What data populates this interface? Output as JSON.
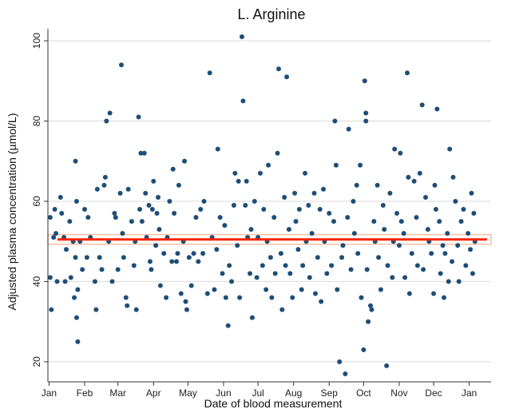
{
  "chart_data": {
    "type": "scatter",
    "title": "L. Arginine",
    "xlabel": "Date of blood measurement",
    "ylabel": "Adjusted plasma concentration (µmol/L)",
    "x_axis": {
      "type": "date",
      "range": [
        "2011-12-31",
        "2013-01-20"
      ],
      "ticks": [
        {
          "date": "2012-01-01",
          "label": "Jan"
        },
        {
          "date": "2012-02-01",
          "label": "Feb"
        },
        {
          "date": "2012-03-01",
          "label": "Mar"
        },
        {
          "date": "2012-04-01",
          "label": "Apr"
        },
        {
          "date": "2012-05-01",
          "label": "May"
        },
        {
          "date": "2012-06-01",
          "label": "Jun"
        },
        {
          "date": "2012-07-01",
          "label": "Jul"
        },
        {
          "date": "2012-08-01",
          "label": "Aug"
        },
        {
          "date": "2012-09-01",
          "label": "Sep"
        },
        {
          "date": "2012-10-01",
          "label": "Oct"
        },
        {
          "date": "2012-11-01",
          "label": "Nov"
        },
        {
          "date": "2012-12-01",
          "label": "Dec"
        },
        {
          "date": "2013-01-01",
          "label": "Jan"
        }
      ]
    },
    "y_axis": {
      "range": [
        15,
        103
      ],
      "ticks": [
        20,
        40,
        60,
        80,
        100
      ]
    },
    "grid": true,
    "colors": {
      "points": "#1d4e77",
      "fit_line": "#ff2200",
      "ci_band": "#f4bfa6",
      "axis": "#333333",
      "grid": "#d9d9d9"
    },
    "fit": {
      "y": 50.5,
      "ci": [
        49.3,
        51.7
      ]
    },
    "points": [
      [
        "2012-01-02",
        56
      ],
      [
        "2012-01-02",
        41
      ],
      [
        "2012-01-03",
        33
      ],
      [
        "2012-01-05",
        51
      ],
      [
        "2012-01-06",
        58
      ],
      [
        "2012-01-07",
        52
      ],
      [
        "2012-01-08",
        40
      ],
      [
        "2012-01-11",
        61
      ],
      [
        "2012-01-12",
        57
      ],
      [
        "2012-01-14",
        51
      ],
      [
        "2012-01-15",
        40
      ],
      [
        "2012-01-16",
        48
      ],
      [
        "2012-01-19",
        55
      ],
      [
        "2012-01-20",
        41
      ],
      [
        "2012-01-22",
        50
      ],
      [
        "2012-01-23",
        36
      ],
      [
        "2012-01-24",
        46
      ],
      [
        "2012-01-24",
        70
      ],
      [
        "2012-01-25",
        60
      ],
      [
        "2012-01-25",
        31
      ],
      [
        "2012-01-26",
        25
      ],
      [
        "2012-01-26",
        38
      ],
      [
        "2012-01-28",
        50
      ],
      [
        "2012-01-30",
        43
      ],
      [
        "2012-02-01",
        58
      ],
      [
        "2012-02-03",
        46
      ],
      [
        "2012-02-04",
        56
      ],
      [
        "2012-02-06",
        51
      ],
      [
        "2012-02-10",
        40
      ],
      [
        "2012-02-11",
        33
      ],
      [
        "2012-02-12",
        63
      ],
      [
        "2012-02-14",
        46
      ],
      [
        "2012-02-16",
        43
      ],
      [
        "2012-02-18",
        64
      ],
      [
        "2012-02-19",
        66
      ],
      [
        "2012-02-20",
        80
      ],
      [
        "2012-02-22",
        50
      ],
      [
        "2012-02-23",
        82
      ],
      [
        "2012-02-25",
        40
      ],
      [
        "2012-02-27",
        57
      ],
      [
        "2012-02-28",
        56
      ],
      [
        "2012-03-01",
        43
      ],
      [
        "2012-03-03",
        62
      ],
      [
        "2012-03-04",
        94
      ],
      [
        "2012-03-05",
        52
      ],
      [
        "2012-03-06",
        46
      ],
      [
        "2012-03-08",
        36
      ],
      [
        "2012-03-09",
        34
      ],
      [
        "2012-03-10",
        63
      ],
      [
        "2012-03-13",
        55
      ],
      [
        "2012-03-15",
        44
      ],
      [
        "2012-03-16",
        50
      ],
      [
        "2012-03-17",
        33
      ],
      [
        "2012-03-19",
        81
      ],
      [
        "2012-03-20",
        58
      ],
      [
        "2012-03-21",
        72
      ],
      [
        "2012-03-22",
        55
      ],
      [
        "2012-03-24",
        72
      ],
      [
        "2012-03-25",
        62
      ],
      [
        "2012-03-26",
        51
      ],
      [
        "2012-03-28",
        59
      ],
      [
        "2012-03-29",
        45
      ],
      [
        "2012-03-30",
        43
      ],
      [
        "2012-03-31",
        58
      ],
      [
        "2012-04-01",
        65
      ],
      [
        "2012-04-03",
        49
      ],
      [
        "2012-04-04",
        57
      ],
      [
        "2012-04-05",
        61
      ],
      [
        "2012-04-06",
        53
      ],
      [
        "2012-04-07",
        39
      ],
      [
        "2012-04-10",
        47
      ],
      [
        "2012-04-12",
        36
      ],
      [
        "2012-04-13",
        51
      ],
      [
        "2012-04-15",
        60
      ],
      [
        "2012-04-17",
        45
      ],
      [
        "2012-04-18",
        68
      ],
      [
        "2012-04-19",
        57
      ],
      [
        "2012-04-21",
        45
      ],
      [
        "2012-04-22",
        47
      ],
      [
        "2012-04-23",
        64
      ],
      [
        "2012-04-25",
        37
      ],
      [
        "2012-04-27",
        50
      ],
      [
        "2012-04-28",
        70
      ],
      [
        "2012-04-29",
        35
      ],
      [
        "2012-04-30",
        33
      ],
      [
        "2012-05-02",
        46
      ],
      [
        "2012-05-04",
        39
      ],
      [
        "2012-05-06",
        47
      ],
      [
        "2012-05-08",
        56
      ],
      [
        "2012-05-10",
        45
      ],
      [
        "2012-05-12",
        58
      ],
      [
        "2012-05-14",
        47
      ],
      [
        "2012-05-15",
        60
      ],
      [
        "2012-05-18",
        37
      ],
      [
        "2012-05-20",
        92
      ],
      [
        "2012-05-22",
        51
      ],
      [
        "2012-05-24",
        38
      ],
      [
        "2012-05-26",
        48
      ],
      [
        "2012-05-27",
        73
      ],
      [
        "2012-05-29",
        56
      ],
      [
        "2012-05-31",
        42
      ],
      [
        "2012-06-02",
        54
      ],
      [
        "2012-06-03",
        36
      ],
      [
        "2012-06-05",
        29
      ],
      [
        "2012-06-06",
        44
      ],
      [
        "2012-06-08",
        40
      ],
      [
        "2012-06-10",
        59
      ],
      [
        "2012-06-11",
        67
      ],
      [
        "2012-06-13",
        49
      ],
      [
        "2012-06-14",
        65
      ],
      [
        "2012-06-15",
        36
      ],
      [
        "2012-06-17",
        101
      ],
      [
        "2012-06-18",
        85
      ],
      [
        "2012-06-20",
        59
      ],
      [
        "2012-06-21",
        65
      ],
      [
        "2012-06-22",
        51
      ],
      [
        "2012-06-24",
        42
      ],
      [
        "2012-06-25",
        53
      ],
      [
        "2012-06-26",
        31
      ],
      [
        "2012-06-28",
        60
      ],
      [
        "2012-06-30",
        41
      ],
      [
        "2012-07-01",
        51
      ],
      [
        "2012-07-03",
        67
      ],
      [
        "2012-07-05",
        44
      ],
      [
        "2012-07-06",
        58
      ],
      [
        "2012-07-08",
        38
      ],
      [
        "2012-07-09",
        50
      ],
      [
        "2012-07-10",
        69
      ],
      [
        "2012-07-12",
        46
      ],
      [
        "2012-07-13",
        36
      ],
      [
        "2012-07-15",
        56
      ],
      [
        "2012-07-16",
        42
      ],
      [
        "2012-07-18",
        72
      ],
      [
        "2012-07-19",
        93
      ],
      [
        "2012-07-21",
        47
      ],
      [
        "2012-07-22",
        33
      ],
      [
        "2012-07-24",
        61
      ],
      [
        "2012-07-25",
        44
      ],
      [
        "2012-07-26",
        91
      ],
      [
        "2012-07-28",
        53
      ],
      [
        "2012-07-29",
        42
      ],
      [
        "2012-07-31",
        36
      ],
      [
        "2012-08-02",
        62
      ],
      [
        "2012-08-03",
        55
      ],
      [
        "2012-08-05",
        48
      ],
      [
        "2012-08-06",
        58
      ],
      [
        "2012-08-08",
        38
      ],
      [
        "2012-08-09",
        44
      ],
      [
        "2012-08-11",
        67
      ],
      [
        "2012-08-12",
        50
      ],
      [
        "2012-08-14",
        59
      ],
      [
        "2012-08-15",
        41
      ],
      [
        "2012-08-17",
        52
      ],
      [
        "2012-08-19",
        62
      ],
      [
        "2012-08-20",
        37
      ],
      [
        "2012-08-22",
        46
      ],
      [
        "2012-08-24",
        58
      ],
      [
        "2012-08-25",
        35
      ],
      [
        "2012-08-27",
        63
      ],
      [
        "2012-08-28",
        50
      ],
      [
        "2012-08-30",
        42
      ],
      [
        "2012-09-01",
        57
      ],
      [
        "2012-09-03",
        44
      ],
      [
        "2012-09-05",
        55
      ],
      [
        "2012-09-06",
        80
      ],
      [
        "2012-09-07",
        69
      ],
      [
        "2012-09-08",
        38
      ],
      [
        "2012-09-10",
        20
      ],
      [
        "2012-09-12",
        46
      ],
      [
        "2012-09-13",
        49
      ],
      [
        "2012-09-15",
        17
      ],
      [
        "2012-09-17",
        56
      ],
      [
        "2012-09-18",
        78
      ],
      [
        "2012-09-20",
        43
      ],
      [
        "2012-09-22",
        60
      ],
      [
        "2012-09-23",
        52
      ],
      [
        "2012-09-25",
        64
      ],
      [
        "2012-09-26",
        47
      ],
      [
        "2012-09-28",
        69
      ],
      [
        "2012-09-29",
        36
      ],
      [
        "2012-10-01",
        23
      ],
      [
        "2012-10-02",
        90
      ],
      [
        "2012-10-03",
        82
      ],
      [
        "2012-10-03",
        80
      ],
      [
        "2012-10-04",
        43
      ],
      [
        "2012-10-05",
        30
      ],
      [
        "2012-10-07",
        34
      ],
      [
        "2012-10-08",
        33
      ],
      [
        "2012-10-10",
        55
      ],
      [
        "2012-10-11",
        50
      ],
      [
        "2012-10-13",
        64
      ],
      [
        "2012-10-14",
        46
      ],
      [
        "2012-10-16",
        38
      ],
      [
        "2012-10-18",
        59
      ],
      [
        "2012-10-19",
        53
      ],
      [
        "2012-10-21",
        19
      ],
      [
        "2012-10-22",
        44
      ],
      [
        "2012-10-24",
        62
      ],
      [
        "2012-10-26",
        41
      ],
      [
        "2012-10-27",
        50
      ],
      [
        "2012-10-28",
        73
      ],
      [
        "2012-10-30",
        57
      ],
      [
        "2012-11-01",
        49
      ],
      [
        "2012-11-02",
        72
      ],
      [
        "2012-11-03",
        55
      ],
      [
        "2012-11-05",
        52
      ],
      [
        "2012-11-06",
        41
      ],
      [
        "2012-11-08",
        92
      ],
      [
        "2012-11-09",
        66
      ],
      [
        "2012-11-10",
        37
      ],
      [
        "2012-11-12",
        47
      ],
      [
        "2012-11-14",
        65
      ],
      [
        "2012-11-16",
        56
      ],
      [
        "2012-11-17",
        44
      ],
      [
        "2012-11-19",
        67
      ],
      [
        "2012-11-21",
        84
      ],
      [
        "2012-11-22",
        43
      ],
      [
        "2012-11-24",
        61
      ],
      [
        "2012-11-26",
        53
      ],
      [
        "2012-11-27",
        50
      ],
      [
        "2012-11-29",
        47
      ],
      [
        "2012-12-01",
        37
      ],
      [
        "2012-12-02",
        64
      ],
      [
        "2012-12-03",
        58
      ],
      [
        "2012-12-04",
        83
      ],
      [
        "2012-12-06",
        55
      ],
      [
        "2012-12-07",
        42
      ],
      [
        "2012-12-09",
        49
      ],
      [
        "2012-12-10",
        36
      ],
      [
        "2012-12-11",
        47
      ],
      [
        "2012-12-13",
        52
      ],
      [
        "2012-12-14",
        40
      ],
      [
        "2012-12-15",
        73
      ],
      [
        "2012-12-17",
        45
      ],
      [
        "2012-12-18",
        66
      ],
      [
        "2012-12-20",
        60
      ],
      [
        "2012-12-22",
        49
      ],
      [
        "2012-12-23",
        40
      ],
      [
        "2012-12-25",
        55
      ],
      [
        "2012-12-27",
        58
      ],
      [
        "2012-12-29",
        44
      ],
      [
        "2012-12-31",
        52
      ],
      [
        "2013-01-02",
        48
      ],
      [
        "2013-01-03",
        62
      ],
      [
        "2013-01-04",
        42
      ],
      [
        "2013-01-05",
        57
      ],
      [
        "2013-01-06",
        50
      ]
    ]
  }
}
